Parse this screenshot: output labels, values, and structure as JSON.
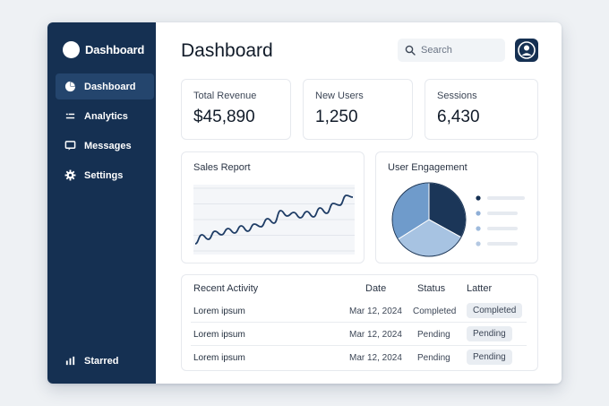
{
  "sidebar": {
    "brand": "Dashboard",
    "items": [
      {
        "label": "Dashboard",
        "icon": "pie-chart-icon",
        "active": true
      },
      {
        "label": "Analytics",
        "icon": "list-icon"
      },
      {
        "label": "Messages",
        "icon": "message-icon"
      },
      {
        "label": "Settings",
        "icon": "gear-icon"
      }
    ],
    "bottom_item": {
      "label": "Starred",
      "icon": "bar-chart-icon"
    }
  },
  "header": {
    "title": "Dashboard",
    "search_placeholder": "Search"
  },
  "stats": [
    {
      "label": "Total Revenue",
      "value": "$45,890"
    },
    {
      "label": "New Users",
      "value": "1,250"
    },
    {
      "label": "Sessions",
      "value": "6,430"
    }
  ],
  "sales_report": {
    "title": "Sales Report"
  },
  "engagement": {
    "title": "User Engagement"
  },
  "chart_data": [
    {
      "type": "line",
      "title": "Sales Report",
      "x": [
        1,
        2,
        3,
        4,
        5,
        6,
        7,
        8,
        9,
        10,
        11,
        12,
        13,
        14,
        15,
        16,
        17,
        18,
        19,
        20,
        21,
        22,
        23,
        24,
        25
      ],
      "values": [
        8,
        18,
        13,
        22,
        18,
        25,
        20,
        28,
        22,
        30,
        27,
        36,
        31,
        45,
        39,
        43,
        37,
        44,
        38,
        48,
        42,
        53,
        51,
        62,
        60
      ],
      "ylim": [
        0,
        70
      ],
      "grid": true
    },
    {
      "type": "pie",
      "title": "User Engagement",
      "values": [
        33,
        33,
        34
      ],
      "colors": [
        "#1b3658",
        "#a7c3e2",
        "#6f9bcb"
      ],
      "legend_colors": [
        "#153052",
        "#8eaed6",
        "#9fbbdd",
        "#b4c8e2"
      ]
    }
  ],
  "activity": {
    "title": "Recent Activity",
    "columns": [
      "Date",
      "Status",
      "Latter"
    ],
    "rows": [
      {
        "name": "Lorem ipsum",
        "date": "Mar 12, 2024",
        "status": "Completed",
        "badge": "Completed"
      },
      {
        "name": "Lorem ipsum",
        "date": "Mar 12, 2024",
        "status": "Pending",
        "badge": "Pending"
      },
      {
        "name": "Lorem ipsum",
        "date": "Mar 12, 2024",
        "status": "Pending",
        "badge": "Pending"
      }
    ]
  },
  "colors": {
    "sidebar": "#153052",
    "sidebar_active": "#24456d",
    "accent": "#1b3658",
    "line": "#1f3d66"
  }
}
